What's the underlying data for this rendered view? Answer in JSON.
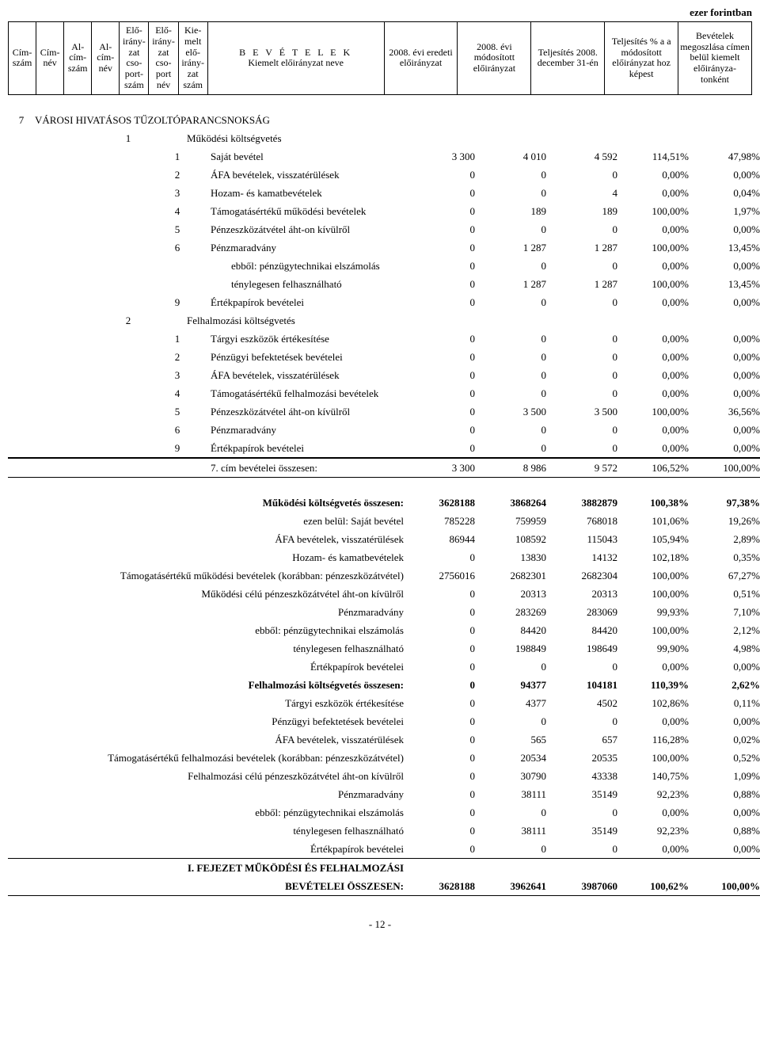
{
  "unit_label": "ezer forintban",
  "header": {
    "c1": "Cím-szám",
    "c2": "Cím-név",
    "c3": "Al-cím-szám",
    "c4": "Al-cím-név",
    "c5": "Elő-irány-zat cso-port-szám",
    "c6": "Elő-irány-zat cso-port név",
    "c7": "Kie-melt elő-irány-zat szám",
    "c8_top": "B E V É T E L E K",
    "c8_sub": "Kiemelt előirányzat neve",
    "c9": "2008. évi eredeti előirányzat",
    "c10": "2008. évi módosított előirányzat",
    "c11": "Teljesítés 2008. december 31-én",
    "c12": "Teljesítés % a a módosított előirányzat hoz képest",
    "c13": "Bevételek megoszlása címen belül kiemelt előirányza-tonként"
  },
  "section_num": "7",
  "section_title": "VÁROSI HIVATÁSOS TŰZOLTÓPARANCSNOKSÁG",
  "groups": [
    {
      "idx": "1",
      "title": "Működési költségvetés",
      "rows": [
        {
          "idx": "1",
          "label": "Saját bevétel",
          "v": [
            "3 300",
            "4 010",
            "4 592",
            "114,51%",
            "47,98%"
          ]
        },
        {
          "idx": "2",
          "label": "ÁFA bevételek, visszatérülések",
          "v": [
            "0",
            "0",
            "0",
            "0,00%",
            "0,00%"
          ]
        },
        {
          "idx": "3",
          "label": "Hozam- és kamatbevételek",
          "v": [
            "0",
            "0",
            "4",
            "0,00%",
            "0,04%"
          ]
        },
        {
          "idx": "4",
          "label": "Támogatásértékű működési bevételek",
          "small": true,
          "v": [
            "0",
            "189",
            "189",
            "100,00%",
            "1,97%"
          ]
        },
        {
          "idx": "5",
          "label": "Pénzeszközátvétel áht-on kívülről",
          "v": [
            "0",
            "0",
            "0",
            "0,00%",
            "0,00%"
          ]
        },
        {
          "idx": "6",
          "label": "Pénzmaradvány",
          "v": [
            "0",
            "1 287",
            "1 287",
            "100,00%",
            "13,45%"
          ]
        },
        {
          "idx": "",
          "label": "ebből: pénzügytechnikai elszámolás",
          "indent": 2,
          "v": [
            "0",
            "0",
            "0",
            "0,00%",
            "0,00%"
          ]
        },
        {
          "idx": "",
          "label": "ténylegesen felhasználható",
          "indent": 2,
          "v": [
            "0",
            "1 287",
            "1 287",
            "100,00%",
            "13,45%"
          ]
        },
        {
          "idx": "9",
          "label": "Értékpapírok bevételei",
          "v": [
            "0",
            "0",
            "0",
            "0,00%",
            "0,00%"
          ]
        }
      ]
    },
    {
      "idx": "2",
      "title": "Felhalmozási költségvetés",
      "rows": [
        {
          "idx": "1",
          "label": "Tárgyi eszközök értékesítése",
          "v": [
            "0",
            "0",
            "0",
            "0,00%",
            "0,00%"
          ]
        },
        {
          "idx": "2",
          "label": "Pénzügyi befektetések bevételei",
          "v": [
            "0",
            "0",
            "0",
            "0,00%",
            "0,00%"
          ]
        },
        {
          "idx": "3",
          "label": "ÁFA bevételek, visszatérülések",
          "v": [
            "0",
            "0",
            "0",
            "0,00%",
            "0,00%"
          ]
        },
        {
          "idx": "4",
          "label": "Támogatásértékű felhalmozási bevételek",
          "small": true,
          "v": [
            "0",
            "0",
            "0",
            "0,00%",
            "0,00%"
          ]
        },
        {
          "idx": "5",
          "label": "Pénzeszközátvétel áht-on kívülről",
          "v": [
            "0",
            "3 500",
            "3 500",
            "100,00%",
            "36,56%"
          ]
        },
        {
          "idx": "6",
          "label": "Pénzmaradvány",
          "v": [
            "0",
            "0",
            "0",
            "0,00%",
            "0,00%"
          ]
        },
        {
          "idx": "9",
          "label": "Értékpapírok bevételei",
          "v": [
            "0",
            "0",
            "0",
            "0,00%",
            "0,00%"
          ]
        }
      ]
    }
  ],
  "section_total": {
    "label": "7. cím bevételei összesen:",
    "v": [
      "3 300",
      "8 986",
      "9 572",
      "106,52%",
      "100,00%"
    ]
  },
  "summary": [
    {
      "label": "Működési költségvetés összesen:",
      "bold": true,
      "v": [
        "3628188",
        "3868264",
        "3882879",
        "100,38%",
        "97,38%"
      ]
    },
    {
      "label": "ezen belül: Saját bevétel",
      "v": [
        "785228",
        "759959",
        "768018",
        "101,06%",
        "19,26%"
      ]
    },
    {
      "label": "ÁFA bevételek, visszatérülések",
      "v": [
        "86944",
        "108592",
        "115043",
        "105,94%",
        "2,89%"
      ]
    },
    {
      "label": "Hozam- és kamatbevételek",
      "v": [
        "0",
        "13830",
        "14132",
        "102,18%",
        "0,35%"
      ]
    },
    {
      "label": "Támogatásértékű működési bevételek (korábban: pénzeszközátvétel)",
      "v": [
        "2756016",
        "2682301",
        "2682304",
        "100,00%",
        "67,27%"
      ]
    },
    {
      "label": "Működési célú pénzeszközátvétel áht-on kívülről",
      "v": [
        "0",
        "20313",
        "20313",
        "100,00%",
        "0,51%"
      ]
    },
    {
      "label": "Pénzmaradvány",
      "v": [
        "0",
        "283269",
        "283069",
        "99,93%",
        "7,10%"
      ]
    },
    {
      "label": "ebből: pénzügytechnikai elszámolás",
      "v": [
        "0",
        "84420",
        "84420",
        "100,00%",
        "2,12%"
      ]
    },
    {
      "label": "ténylegesen felhasználható",
      "v": [
        "0",
        "198849",
        "198649",
        "99,90%",
        "4,98%"
      ]
    },
    {
      "label": "Értékpapírok bevételei",
      "v": [
        "0",
        "0",
        "0",
        "0,00%",
        "0,00%"
      ]
    },
    {
      "label": "Felhalmozási költségvetés összesen:",
      "bold": true,
      "v": [
        "0",
        "94377",
        "104181",
        "110,39%",
        "2,62%"
      ]
    },
    {
      "label": "Tárgyi eszközök értékesítése",
      "v": [
        "0",
        "4377",
        "4502",
        "102,86%",
        "0,11%"
      ]
    },
    {
      "label": "Pénzügyi befektetések bevételei",
      "v": [
        "0",
        "0",
        "0",
        "0,00%",
        "0,00%"
      ]
    },
    {
      "label": "ÁFA bevételek, visszatérülések",
      "v": [
        "0",
        "565",
        "657",
        "116,28%",
        "0,02%"
      ]
    },
    {
      "label": "Támogatásértékű felhalmozási bevételek (korábban: pénzeszközátvétel)",
      "v": [
        "0",
        "20534",
        "20535",
        "100,00%",
        "0,52%"
      ]
    },
    {
      "label": "Felhalmozási célú pénzeszközátvétel áht-on kívülről",
      "v": [
        "0",
        "30790",
        "43338",
        "140,75%",
        "1,09%"
      ]
    },
    {
      "label": "Pénzmaradvány",
      "v": [
        "0",
        "38111",
        "35149",
        "92,23%",
        "0,88%"
      ]
    },
    {
      "label": "ebből: pénzügytechnikai elszámolás",
      "v": [
        "0",
        "0",
        "0",
        "0,00%",
        "0,00%"
      ]
    },
    {
      "label": "ténylegesen felhasználható",
      "v": [
        "0",
        "38111",
        "35149",
        "92,23%",
        "0,88%"
      ]
    },
    {
      "label": "Értékpapírok bevételei",
      "v": [
        "0",
        "0",
        "0",
        "0,00%",
        "0,00%"
      ]
    }
  ],
  "grand": {
    "line1": "I. FEJEZET MŰKÖDÉSI ÉS FELHALMOZÁSI",
    "line2": "BEVÉTELEI ÖSSZESEN:",
    "v": [
      "3628188",
      "3962641",
      "3987060",
      "100,62%",
      "100,00%"
    ]
  },
  "page_footer": "- 12 -",
  "colwidths": {
    "header": [
      34,
      34,
      34,
      34,
      36,
      36,
      36,
      216,
      90,
      90,
      90,
      90,
      90
    ],
    "body": [
      34,
      34,
      34,
      100,
      24,
      280,
      90,
      90,
      90,
      90,
      90
    ]
  }
}
